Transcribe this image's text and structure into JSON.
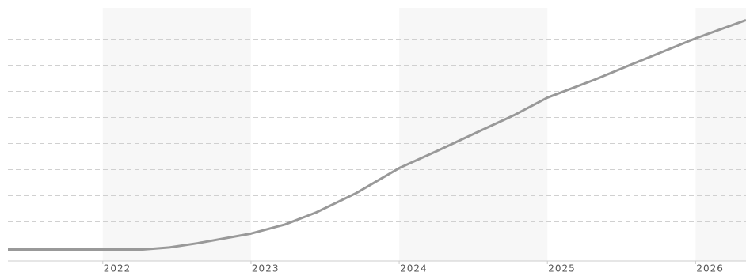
{
  "chart_data": {
    "type": "line",
    "x": [
      2021.36,
      2022.27,
      2022.45,
      2022.64,
      2023.0,
      2023.23,
      2023.44,
      2023.71,
      2024.0,
      2024.25,
      2024.51,
      2024.78,
      2025.0,
      2025.32,
      2025.58,
      2026.0,
      2026.34
    ],
    "series": [
      {
        "color": "#999999",
        "values": [
          -0.06,
          -0.06,
          0.02,
          0.18,
          0.55,
          0.9,
          1.36,
          2.1,
          3.06,
          3.7,
          4.39,
          5.1,
          5.76,
          6.45,
          7.06,
          8.03,
          8.73
        ]
      }
    ],
    "xlim": [
      2021.36,
      2026.34
    ],
    "xticks": [
      2022,
      2023,
      2024,
      2025,
      2026
    ],
    "ylim": [
      -0.5,
      9.5
    ],
    "yticks": [
      1,
      2,
      3,
      4,
      5,
      6,
      7,
      8,
      9
    ],
    "grid": true
  }
}
